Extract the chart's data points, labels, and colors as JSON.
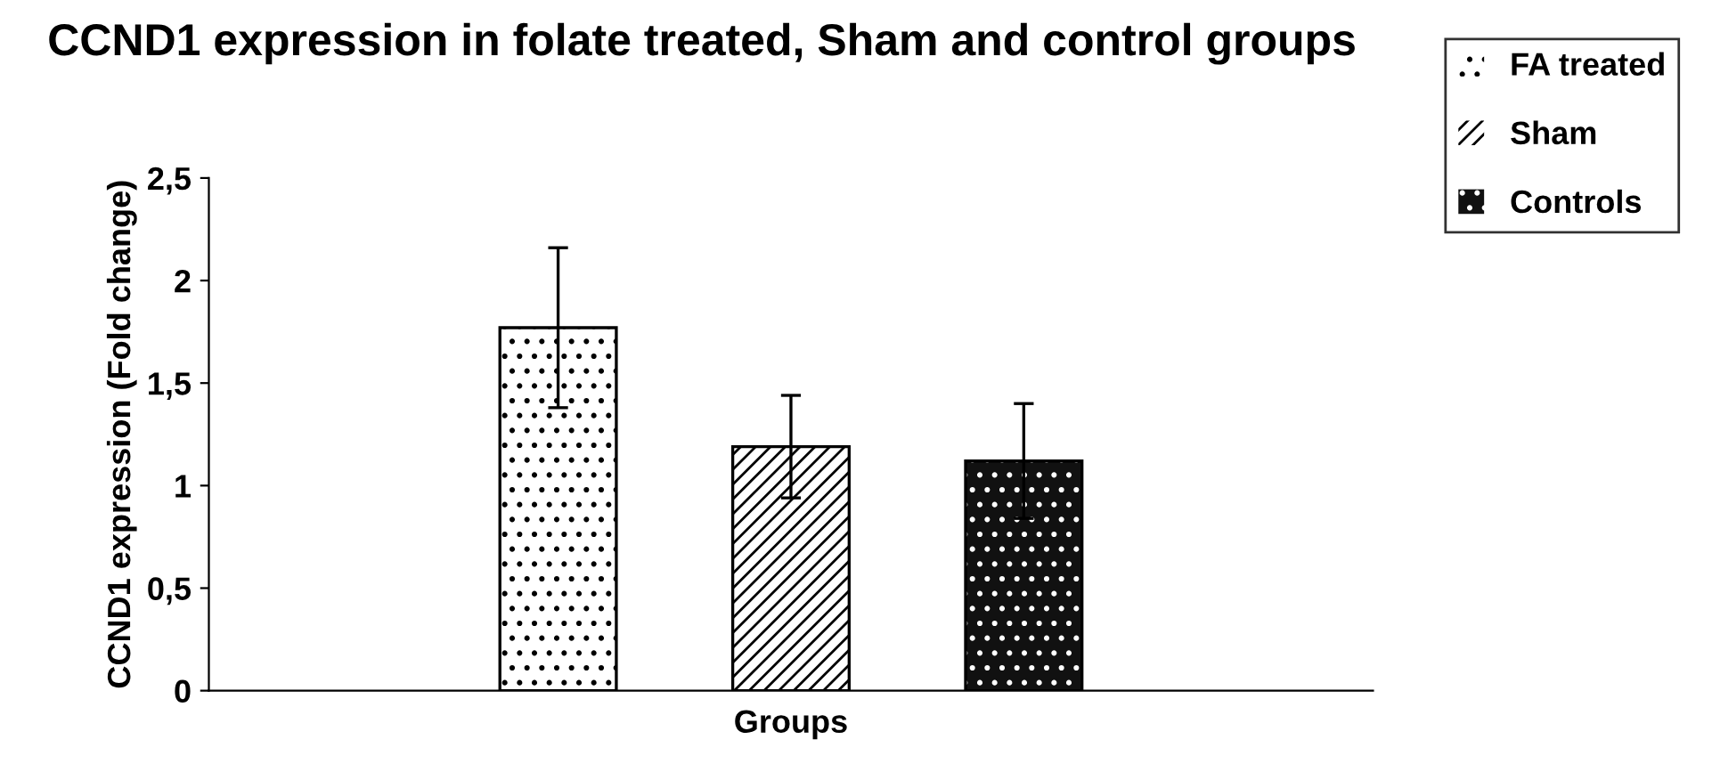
{
  "chart_data": {
    "type": "bar",
    "title": "CCND1 expression in folate treated, Sham and control groups",
    "xlabel": "Groups",
    "ylabel": "CCND1 expression (Fold change)",
    "categories": [
      null
    ],
    "series": [
      {
        "name": "FA treated",
        "color": "#ffffff",
        "values": [
          1.77
        ],
        "errors": [
          0.39
        ]
      },
      {
        "name": "Sham",
        "color": "#ffffff",
        "values": [
          1.19
        ],
        "errors": [
          0.25
        ]
      },
      {
        "name": "Controls",
        "color": "#111111",
        "values": [
          1.12
        ],
        "errors": [
          0.28
        ]
      }
    ],
    "ylim": [
      0,
      2.5
    ],
    "yticks": [
      0,
      {
        "value": 0.5,
        "label": "0,5"
      },
      1,
      {
        "value": 1.5,
        "label": "1,5"
      },
      2,
      {
        "value": 2.5,
        "label": "2,5"
      }
    ],
    "grid": false,
    "legend": "top right"
  }
}
